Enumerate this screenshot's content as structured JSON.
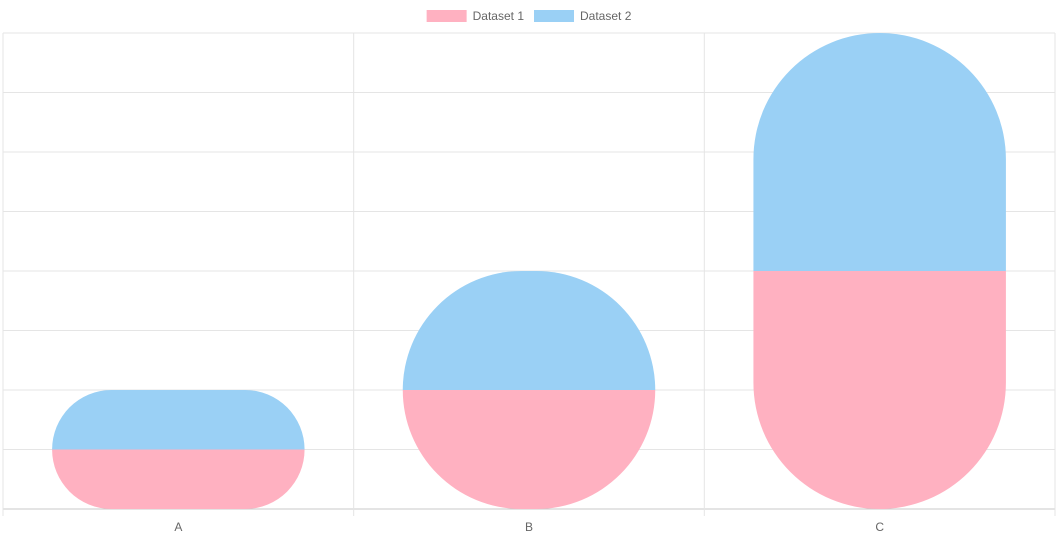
{
  "chart_data": {
    "type": "bar",
    "stacked": true,
    "categories": [
      "A",
      "B",
      "C"
    ],
    "series": [
      {
        "name": "Dataset 1",
        "values": [
          1,
          2,
          4
        ],
        "color": "#ffb1c1"
      },
      {
        "name": "Dataset 2",
        "values": [
          1,
          2,
          4
        ],
        "color": "#9ad0f5"
      }
    ],
    "ylim": [
      0,
      8
    ],
    "y_grid_step": 1,
    "grid": true,
    "y_tick_labels_visible": false,
    "legend_position": "top",
    "bar_style": "rounded"
  }
}
